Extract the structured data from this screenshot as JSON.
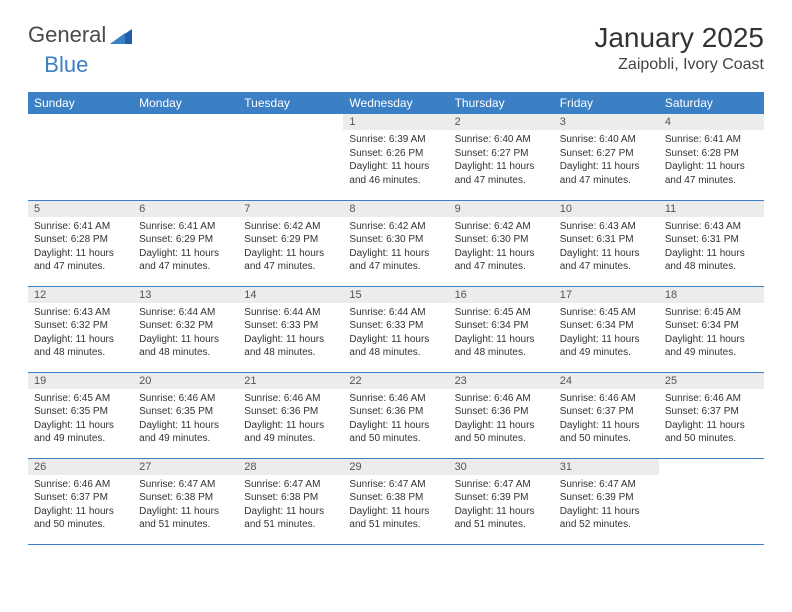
{
  "logo": {
    "part1": "General",
    "part2": "Blue"
  },
  "title": "January 2025",
  "location": "Zaipobli, Ivory Coast",
  "colors": {
    "header_blue": "#3b7fc4",
    "daynum_bg": "#ececec",
    "logo_gray": "#4a4a4a",
    "logo_blue": "#3b7fc4"
  },
  "weekdays": [
    "Sunday",
    "Monday",
    "Tuesday",
    "Wednesday",
    "Thursday",
    "Friday",
    "Saturday"
  ],
  "weeks": [
    [
      null,
      null,
      null,
      {
        "n": "1",
        "sunrise": "6:39 AM",
        "sunset": "6:26 PM",
        "daylight": "11 hours and 46 minutes."
      },
      {
        "n": "2",
        "sunrise": "6:40 AM",
        "sunset": "6:27 PM",
        "daylight": "11 hours and 47 minutes."
      },
      {
        "n": "3",
        "sunrise": "6:40 AM",
        "sunset": "6:27 PM",
        "daylight": "11 hours and 47 minutes."
      },
      {
        "n": "4",
        "sunrise": "6:41 AM",
        "sunset": "6:28 PM",
        "daylight": "11 hours and 47 minutes."
      }
    ],
    [
      {
        "n": "5",
        "sunrise": "6:41 AM",
        "sunset": "6:28 PM",
        "daylight": "11 hours and 47 minutes."
      },
      {
        "n": "6",
        "sunrise": "6:41 AM",
        "sunset": "6:29 PM",
        "daylight": "11 hours and 47 minutes."
      },
      {
        "n": "7",
        "sunrise": "6:42 AM",
        "sunset": "6:29 PM",
        "daylight": "11 hours and 47 minutes."
      },
      {
        "n": "8",
        "sunrise": "6:42 AM",
        "sunset": "6:30 PM",
        "daylight": "11 hours and 47 minutes."
      },
      {
        "n": "9",
        "sunrise": "6:42 AM",
        "sunset": "6:30 PM",
        "daylight": "11 hours and 47 minutes."
      },
      {
        "n": "10",
        "sunrise": "6:43 AM",
        "sunset": "6:31 PM",
        "daylight": "11 hours and 47 minutes."
      },
      {
        "n": "11",
        "sunrise": "6:43 AM",
        "sunset": "6:31 PM",
        "daylight": "11 hours and 48 minutes."
      }
    ],
    [
      {
        "n": "12",
        "sunrise": "6:43 AM",
        "sunset": "6:32 PM",
        "daylight": "11 hours and 48 minutes."
      },
      {
        "n": "13",
        "sunrise": "6:44 AM",
        "sunset": "6:32 PM",
        "daylight": "11 hours and 48 minutes."
      },
      {
        "n": "14",
        "sunrise": "6:44 AM",
        "sunset": "6:33 PM",
        "daylight": "11 hours and 48 minutes."
      },
      {
        "n": "15",
        "sunrise": "6:44 AM",
        "sunset": "6:33 PM",
        "daylight": "11 hours and 48 minutes."
      },
      {
        "n": "16",
        "sunrise": "6:45 AM",
        "sunset": "6:34 PM",
        "daylight": "11 hours and 48 minutes."
      },
      {
        "n": "17",
        "sunrise": "6:45 AM",
        "sunset": "6:34 PM",
        "daylight": "11 hours and 49 minutes."
      },
      {
        "n": "18",
        "sunrise": "6:45 AM",
        "sunset": "6:34 PM",
        "daylight": "11 hours and 49 minutes."
      }
    ],
    [
      {
        "n": "19",
        "sunrise": "6:45 AM",
        "sunset": "6:35 PM",
        "daylight": "11 hours and 49 minutes."
      },
      {
        "n": "20",
        "sunrise": "6:46 AM",
        "sunset": "6:35 PM",
        "daylight": "11 hours and 49 minutes."
      },
      {
        "n": "21",
        "sunrise": "6:46 AM",
        "sunset": "6:36 PM",
        "daylight": "11 hours and 49 minutes."
      },
      {
        "n": "22",
        "sunrise": "6:46 AM",
        "sunset": "6:36 PM",
        "daylight": "11 hours and 50 minutes."
      },
      {
        "n": "23",
        "sunrise": "6:46 AM",
        "sunset": "6:36 PM",
        "daylight": "11 hours and 50 minutes."
      },
      {
        "n": "24",
        "sunrise": "6:46 AM",
        "sunset": "6:37 PM",
        "daylight": "11 hours and 50 minutes."
      },
      {
        "n": "25",
        "sunrise": "6:46 AM",
        "sunset": "6:37 PM",
        "daylight": "11 hours and 50 minutes."
      }
    ],
    [
      {
        "n": "26",
        "sunrise": "6:46 AM",
        "sunset": "6:37 PM",
        "daylight": "11 hours and 50 minutes."
      },
      {
        "n": "27",
        "sunrise": "6:47 AM",
        "sunset": "6:38 PM",
        "daylight": "11 hours and 51 minutes."
      },
      {
        "n": "28",
        "sunrise": "6:47 AM",
        "sunset": "6:38 PM",
        "daylight": "11 hours and 51 minutes."
      },
      {
        "n": "29",
        "sunrise": "6:47 AM",
        "sunset": "6:38 PM",
        "daylight": "11 hours and 51 minutes."
      },
      {
        "n": "30",
        "sunrise": "6:47 AM",
        "sunset": "6:39 PM",
        "daylight": "11 hours and 51 minutes."
      },
      {
        "n": "31",
        "sunrise": "6:47 AM",
        "sunset": "6:39 PM",
        "daylight": "11 hours and 52 minutes."
      },
      null
    ]
  ],
  "labels": {
    "sunrise": "Sunrise:",
    "sunset": "Sunset:",
    "daylight": "Daylight:"
  }
}
